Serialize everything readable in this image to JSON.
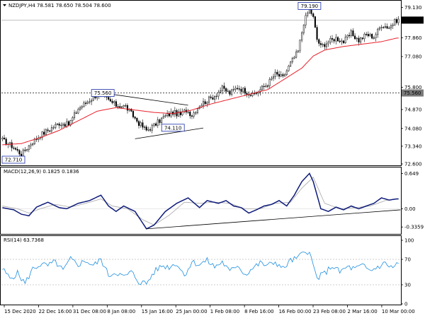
{
  "chart_data": [
    {
      "type": "candlestick",
      "title": "NZDJPY,H4  78.581 78.650 78.504 78.600",
      "x_ticks": [
        "15 Dec 2020",
        "22 Dec 16:00",
        "31 Dec 08:00",
        "8 Jan 08:00",
        "15 Jan 16:00",
        "25 Jan 00:00",
        "1 Feb 08:00",
        "8 Feb 16:00",
        "16 Feb 00:00",
        "23 Feb 08:00",
        "2 Mar 16:00",
        "10 Mar 00:00"
      ],
      "y_ticks": [
        79.13,
        77.86,
        77.08,
        75.8,
        74.87,
        74.08,
        73.34,
        72.6
      ],
      "ylim": [
        72.6,
        79.35
      ],
      "current_price": "78.600",
      "hline_level": "75.560",
      "annotations": [
        {
          "text": "79.190",
          "x_index": 162,
          "y": 79.19
        },
        {
          "text": "75.560",
          "x_index": 53,
          "y": 75.56
        },
        {
          "text": "74.110",
          "x_index": 90,
          "y": 74.11
        },
        {
          "text": "72.710",
          "x_index": 5,
          "y": 72.71
        }
      ],
      "close_anchors": [
        [
          0,
          73.6
        ],
        [
          5,
          73.35
        ],
        [
          10,
          73.0
        ],
        [
          15,
          73.45
        ],
        [
          20,
          73.8
        ],
        [
          25,
          74.05
        ],
        [
          30,
          74.3
        ],
        [
          35,
          74.25
        ],
        [
          40,
          74.9
        ],
        [
          45,
          75.2
        ],
        [
          50,
          75.5
        ],
        [
          53,
          75.45
        ],
        [
          56,
          75.25
        ],
        [
          60,
          75.05
        ],
        [
          65,
          75.0
        ],
        [
          68,
          74.7
        ],
        [
          72,
          74.3
        ],
        [
          76,
          74.0
        ],
        [
          80,
          74.2
        ],
        [
          85,
          74.55
        ],
        [
          90,
          74.75
        ],
        [
          94,
          74.65
        ],
        [
          97,
          74.85
        ],
        [
          100,
          74.65
        ],
        [
          104,
          75.05
        ],
        [
          108,
          75.25
        ],
        [
          112,
          75.45
        ],
        [
          116,
          75.75
        ],
        [
          120,
          75.55
        ],
        [
          124,
          75.8
        ],
        [
          128,
          75.65
        ],
        [
          132,
          75.45
        ],
        [
          136,
          75.7
        ],
        [
          140,
          75.95
        ],
        [
          144,
          76.35
        ],
        [
          148,
          76.2
        ],
        [
          152,
          76.8
        ],
        [
          156,
          77.3
        ],
        [
          159,
          78.5
        ],
        [
          162,
          79.1
        ],
        [
          164,
          78.7
        ],
        [
          166,
          77.8
        ],
        [
          168,
          77.5
        ],
        [
          172,
          77.7
        ],
        [
          176,
          77.85
        ],
        [
          180,
          77.7
        ],
        [
          184,
          78.05
        ],
        [
          188,
          77.75
        ],
        [
          192,
          78.0
        ],
        [
          196,
          77.9
        ],
        [
          200,
          78.4
        ],
        [
          204,
          78.3
        ],
        [
          208,
          78.6
        ]
      ],
      "ma_anchors": [
        [
          0,
          73.4
        ],
        [
          10,
          73.45
        ],
        [
          20,
          73.7
        ],
        [
          30,
          74.0
        ],
        [
          40,
          74.4
        ],
        [
          50,
          74.8
        ],
        [
          60,
          74.95
        ],
        [
          70,
          74.85
        ],
        [
          80,
          74.75
        ],
        [
          90,
          74.7
        ],
        [
          100,
          74.85
        ],
        [
          110,
          75.1
        ],
        [
          120,
          75.3
        ],
        [
          130,
          75.5
        ],
        [
          140,
          75.7
        ],
        [
          150,
          76.2
        ],
        [
          158,
          76.6
        ],
        [
          164,
          77.1
        ],
        [
          170,
          77.35
        ],
        [
          180,
          77.5
        ],
        [
          190,
          77.6
        ],
        [
          200,
          77.7
        ],
        [
          208,
          77.85
        ]
      ],
      "trendlines": [
        {
          "from": [
            53,
            75.56
          ],
          "to": [
            98,
            75.05
          ]
        },
        {
          "from": [
            70,
            73.65
          ],
          "to": [
            106,
            74.1
          ]
        }
      ]
    },
    {
      "type": "line",
      "title": "MACD(12,26,9) 0.1825 0.1836",
      "y_ticks": [
        0.649,
        0.0,
        -0.3359
      ],
      "ylim": [
        -0.45,
        0.72
      ],
      "macd_anchors": [
        [
          0,
          0.02
        ],
        [
          6,
          -0.02
        ],
        [
          10,
          -0.1
        ],
        [
          14,
          -0.13
        ],
        [
          18,
          0.03
        ],
        [
          24,
          0.12
        ],
        [
          30,
          0.02
        ],
        [
          34,
          0.0
        ],
        [
          40,
          0.1
        ],
        [
          46,
          0.15
        ],
        [
          52,
          0.25
        ],
        [
          56,
          0.05
        ],
        [
          60,
          -0.05
        ],
        [
          64,
          0.05
        ],
        [
          70,
          -0.05
        ],
        [
          76,
          -0.37
        ],
        [
          80,
          -0.3
        ],
        [
          86,
          -0.05
        ],
        [
          92,
          0.1
        ],
        [
          98,
          0.2
        ],
        [
          104,
          0.02
        ],
        [
          108,
          0.15
        ],
        [
          114,
          0.1
        ],
        [
          118,
          0.15
        ],
        [
          122,
          0.05
        ],
        [
          126,
          0.02
        ],
        [
          130,
          -0.08
        ],
        [
          134,
          -0.02
        ],
        [
          138,
          0.05
        ],
        [
          142,
          0.08
        ],
        [
          146,
          0.15
        ],
        [
          150,
          0.05
        ],
        [
          154,
          0.25
        ],
        [
          158,
          0.5
        ],
        [
          162,
          0.65
        ],
        [
          164,
          0.5
        ],
        [
          168,
          0.0
        ],
        [
          172,
          -0.05
        ],
        [
          176,
          0.03
        ],
        [
          180,
          -0.02
        ],
        [
          184,
          0.05
        ],
        [
          188,
          0.0
        ],
        [
          192,
          0.05
        ],
        [
          196,
          0.1
        ],
        [
          200,
          0.2
        ],
        [
          204,
          0.16
        ],
        [
          208,
          0.18
        ]
      ],
      "signal_anchors": [
        [
          0,
          0.05
        ],
        [
          8,
          0.0
        ],
        [
          14,
          -0.08
        ],
        [
          20,
          0.0
        ],
        [
          28,
          0.08
        ],
        [
          36,
          0.03
        ],
        [
          44,
          0.1
        ],
        [
          52,
          0.18
        ],
        [
          58,
          0.05
        ],
        [
          66,
          0.0
        ],
        [
          74,
          -0.2
        ],
        [
          80,
          -0.3
        ],
        [
          88,
          -0.12
        ],
        [
          96,
          0.12
        ],
        [
          104,
          0.1
        ],
        [
          112,
          0.12
        ],
        [
          120,
          0.1
        ],
        [
          128,
          0.0
        ],
        [
          136,
          0.0
        ],
        [
          144,
          0.1
        ],
        [
          152,
          0.12
        ],
        [
          158,
          0.38
        ],
        [
          164,
          0.58
        ],
        [
          170,
          0.1
        ],
        [
          178,
          0.0
        ],
        [
          186,
          0.02
        ],
        [
          194,
          0.05
        ],
        [
          202,
          0.15
        ],
        [
          208,
          0.18
        ]
      ],
      "trendline": {
        "from": [
          76,
          -0.37
        ],
        "to": [
          210,
          -0.02
        ]
      }
    },
    {
      "type": "line",
      "title": "RSI(14) 63.7368",
      "y_ticks": [
        100,
        70,
        30,
        0
      ],
      "ylim": [
        0,
        100
      ],
      "levels": [
        70,
        30
      ],
      "rsi_anchors": [
        [
          0,
          55
        ],
        [
          4,
          40
        ],
        [
          8,
          48
        ],
        [
          12,
          32
        ],
        [
          16,
          55
        ],
        [
          20,
          62
        ],
        [
          24,
          60
        ],
        [
          28,
          66
        ],
        [
          32,
          52
        ],
        [
          36,
          70
        ],
        [
          40,
          62
        ],
        [
          44,
          68
        ],
        [
          48,
          60
        ],
        [
          52,
          70
        ],
        [
          56,
          45
        ],
        [
          60,
          50
        ],
        [
          64,
          42
        ],
        [
          68,
          50
        ],
        [
          72,
          35
        ],
        [
          76,
          32
        ],
        [
          80,
          50
        ],
        [
          84,
          60
        ],
        [
          88,
          58
        ],
        [
          92,
          64
        ],
        [
          96,
          45
        ],
        [
          100,
          66
        ],
        [
          104,
          62
        ],
        [
          108,
          68
        ],
        [
          112,
          58
        ],
        [
          116,
          66
        ],
        [
          120,
          50
        ],
        [
          124,
          62
        ],
        [
          128,
          46
        ],
        [
          132,
          56
        ],
        [
          136,
          64
        ],
        [
          140,
          60
        ],
        [
          144,
          66
        ],
        [
          148,
          55
        ],
        [
          152,
          68
        ],
        [
          156,
          72
        ],
        [
          160,
          85
        ],
        [
          162,
          80
        ],
        [
          166,
          40
        ],
        [
          170,
          48
        ],
        [
          174,
          60
        ],
        [
          178,
          50
        ],
        [
          182,
          58
        ],
        [
          186,
          55
        ],
        [
          190,
          60
        ],
        [
          194,
          52
        ],
        [
          198,
          58
        ],
        [
          202,
          64
        ],
        [
          206,
          56
        ],
        [
          208,
          63.7
        ]
      ]
    }
  ]
}
